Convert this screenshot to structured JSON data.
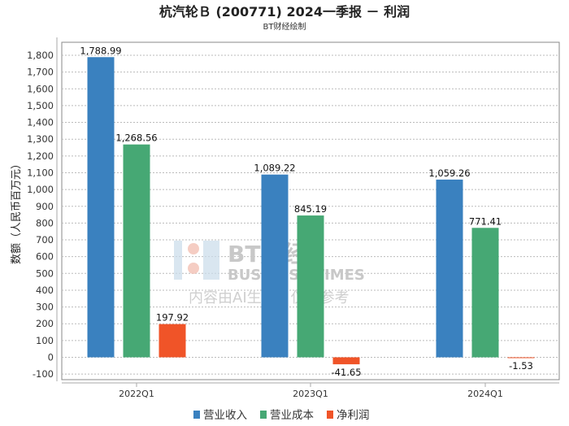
{
  "chart_data": {
    "type": "bar",
    "title": "杭汽轮Ｂ (200771) 2024一季报 － 利润",
    "subtitle": "BT财经绘制",
    "xlabel": "",
    "ylabel": "数额（人民币百万元）",
    "ylim": [
      -100,
      1850
    ],
    "yticks": [
      -100,
      0,
      100,
      200,
      300,
      400,
      500,
      600,
      700,
      800,
      900,
      1000,
      1100,
      1200,
      1300,
      1400,
      1500,
      1600,
      1700,
      1800
    ],
    "grid": true,
    "legend_position": "bottom",
    "categories": [
      "2022Q1",
      "2023Q1",
      "2024Q1"
    ],
    "series": [
      {
        "name": "营业收入",
        "color": "#3a81bf",
        "values": [
          1788.99,
          1089.22,
          1059.26
        ],
        "labels": [
          "1,788.99",
          "1,089.22",
          "1,059.26"
        ]
      },
      {
        "name": "营业成本",
        "color": "#46a874",
        "values": [
          1268.56,
          845.19,
          771.41
        ],
        "labels": [
          "1,268.56",
          "845.19",
          "771.41"
        ]
      },
      {
        "name": "净利润",
        "color": "#f05428",
        "values": [
          197.92,
          -41.65,
          -1.53
        ],
        "labels": [
          "197.92",
          "-41.65",
          "-1.53"
        ]
      }
    ],
    "watermark": {
      "brand": "BT财经",
      "english": "BUSINESS TIMES",
      "notice": "内容由AI生成，仅供参考"
    }
  }
}
